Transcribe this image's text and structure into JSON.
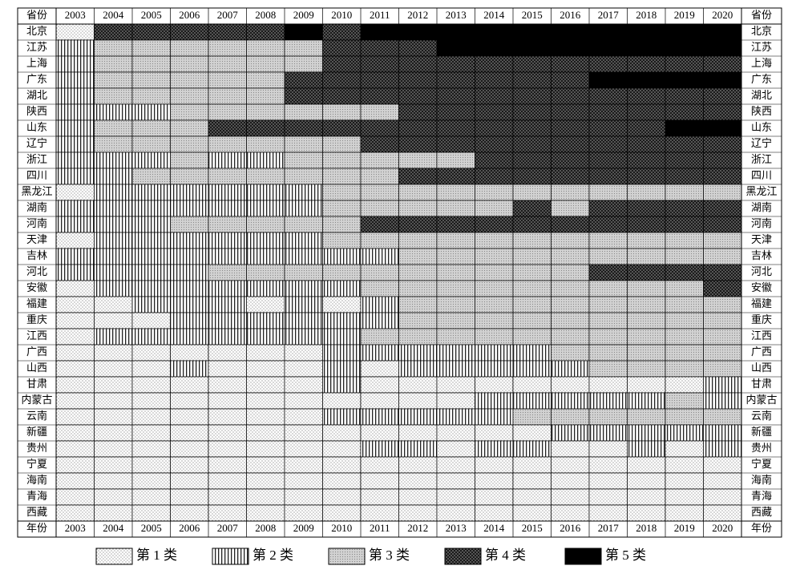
{
  "chart_data": {
    "type": "heatmap",
    "corner_top": "省份",
    "corner_bottom": "年份",
    "columns": [
      "2003",
      "2004",
      "2005",
      "2006",
      "2007",
      "2008",
      "2009",
      "2010",
      "2011",
      "2012",
      "2013",
      "2014",
      "2015",
      "2016",
      "2017",
      "2018",
      "2019",
      "2020"
    ],
    "rows": [
      "北京",
      "江苏",
      "上海",
      "广东",
      "湖北",
      "陕西",
      "山东",
      "辽宁",
      "浙江",
      "四川",
      "黑龙江",
      "湖南",
      "河南",
      "天津",
      "吉林",
      "河北",
      "安徽",
      "福建",
      "重庆",
      "江西",
      "广西",
      "山西",
      "甘肃",
      "内蒙古",
      "云南",
      "新疆",
      "贵州",
      "宁夏",
      "海南",
      "青海",
      "西藏"
    ],
    "values": [
      [
        1,
        4,
        4,
        4,
        4,
        4,
        5,
        4,
        5,
        5,
        5,
        5,
        5,
        5,
        5,
        5,
        5,
        5
      ],
      [
        2,
        3,
        3,
        3,
        3,
        3,
        3,
        4,
        4,
        4,
        5,
        5,
        5,
        5,
        5,
        5,
        5,
        5
      ],
      [
        2,
        3,
        3,
        3,
        3,
        3,
        3,
        4,
        4,
        4,
        4,
        4,
        4,
        4,
        4,
        4,
        4,
        4
      ],
      [
        2,
        3,
        3,
        3,
        3,
        3,
        4,
        4,
        4,
        4,
        4,
        4,
        4,
        4,
        5,
        5,
        5,
        5
      ],
      [
        2,
        3,
        3,
        3,
        3,
        3,
        4,
        4,
        4,
        4,
        4,
        4,
        4,
        4,
        4,
        4,
        4,
        4
      ],
      [
        2,
        2,
        2,
        3,
        3,
        3,
        3,
        3,
        3,
        4,
        4,
        4,
        4,
        4,
        4,
        4,
        4,
        4
      ],
      [
        2,
        3,
        3,
        3,
        4,
        4,
        4,
        4,
        4,
        4,
        4,
        4,
        4,
        4,
        4,
        4,
        5,
        5
      ],
      [
        2,
        3,
        3,
        3,
        3,
        3,
        3,
        3,
        4,
        4,
        4,
        4,
        4,
        4,
        4,
        4,
        4,
        4
      ],
      [
        2,
        2,
        2,
        3,
        2,
        2,
        3,
        3,
        3,
        3,
        3,
        4,
        4,
        4,
        4,
        4,
        4,
        4
      ],
      [
        2,
        2,
        3,
        3,
        3,
        3,
        3,
        3,
        3,
        4,
        4,
        4,
        4,
        4,
        4,
        4,
        4,
        4
      ],
      [
        1,
        2,
        2,
        2,
        2,
        2,
        2,
        3,
        3,
        3,
        3,
        3,
        3,
        3,
        3,
        3,
        3,
        3
      ],
      [
        2,
        2,
        2,
        2,
        2,
        2,
        2,
        3,
        3,
        3,
        3,
        3,
        4,
        3,
        4,
        4,
        4,
        4
      ],
      [
        2,
        2,
        2,
        3,
        3,
        3,
        3,
        3,
        4,
        4,
        4,
        4,
        4,
        4,
        4,
        4,
        4,
        4
      ],
      [
        1,
        2,
        2,
        2,
        2,
        2,
        2,
        3,
        3,
        3,
        3,
        3,
        3,
        3,
        3,
        3,
        3,
        3
      ],
      [
        2,
        2,
        2,
        2,
        2,
        2,
        2,
        2,
        2,
        3,
        3,
        3,
        3,
        3,
        3,
        3,
        3,
        3
      ],
      [
        2,
        2,
        2,
        2,
        3,
        3,
        3,
        3,
        3,
        3,
        3,
        3,
        3,
        3,
        4,
        4,
        4,
        4
      ],
      [
        1,
        2,
        2,
        2,
        2,
        2,
        2,
        2,
        3,
        3,
        3,
        3,
        3,
        3,
        3,
        3,
        3,
        4
      ],
      [
        1,
        1,
        2,
        2,
        2,
        1,
        2,
        1,
        2,
        3,
        3,
        3,
        3,
        3,
        3,
        3,
        3,
        3
      ],
      [
        1,
        1,
        1,
        2,
        2,
        2,
        2,
        2,
        2,
        3,
        3,
        3,
        3,
        3,
        3,
        3,
        3,
        3
      ],
      [
        1,
        2,
        2,
        2,
        2,
        2,
        2,
        2,
        3,
        3,
        3,
        3,
        3,
        3,
        3,
        3,
        3,
        3
      ],
      [
        1,
        1,
        1,
        1,
        1,
        1,
        1,
        2,
        2,
        2,
        2,
        2,
        2,
        3,
        3,
        3,
        3,
        3
      ],
      [
        1,
        1,
        1,
        2,
        1,
        1,
        1,
        2,
        1,
        2,
        2,
        2,
        2,
        2,
        3,
        3,
        3,
        3
      ],
      [
        1,
        1,
        1,
        1,
        1,
        1,
        1,
        2,
        1,
        1,
        1,
        1,
        1,
        1,
        1,
        1,
        1,
        2
      ],
      [
        1,
        1,
        1,
        1,
        1,
        1,
        1,
        1,
        1,
        1,
        1,
        2,
        2,
        2,
        2,
        2,
        3,
        2
      ],
      [
        1,
        1,
        1,
        1,
        1,
        1,
        1,
        2,
        2,
        2,
        2,
        2,
        3,
        3,
        3,
        3,
        3,
        3
      ],
      [
        1,
        1,
        1,
        1,
        1,
        1,
        1,
        1,
        1,
        1,
        1,
        1,
        1,
        2,
        2,
        2,
        2,
        2
      ],
      [
        1,
        1,
        1,
        1,
        1,
        1,
        1,
        1,
        2,
        2,
        1,
        2,
        2,
        1,
        1,
        2,
        1,
        2
      ],
      [
        1,
        1,
        1,
        1,
        1,
        1,
        1,
        1,
        1,
        1,
        1,
        1,
        1,
        1,
        1,
        1,
        1,
        1
      ],
      [
        1,
        1,
        1,
        1,
        1,
        1,
        1,
        1,
        1,
        1,
        1,
        1,
        1,
        1,
        1,
        1,
        1,
        1
      ],
      [
        1,
        1,
        1,
        1,
        1,
        1,
        1,
        1,
        1,
        1,
        1,
        1,
        1,
        1,
        1,
        1,
        1,
        1
      ],
      [
        1,
        1,
        1,
        1,
        1,
        1,
        1,
        1,
        1,
        1,
        1,
        1,
        1,
        1,
        1,
        1,
        1,
        1
      ]
    ],
    "legend": [
      "第 1 类",
      "第 2 类",
      "第 3 类",
      "第 4 类",
      "第 5 类"
    ]
  }
}
